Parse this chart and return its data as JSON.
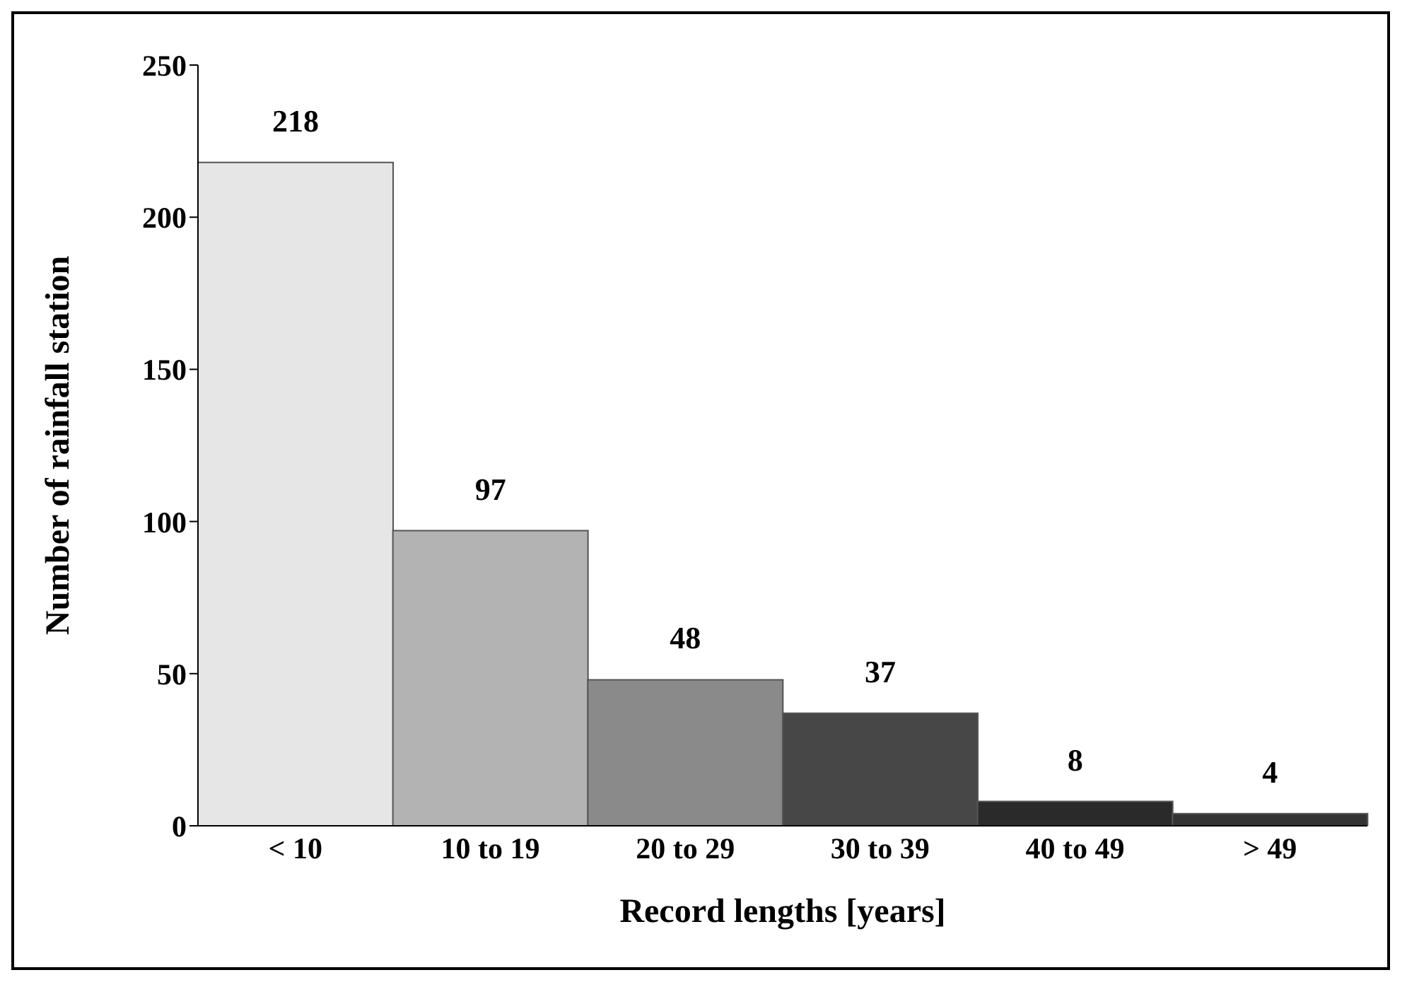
{
  "chart_data": {
    "type": "bar",
    "xlabel": "Record lengths [years]",
    "ylabel": "Number of rainfall station",
    "categories": [
      "< 10",
      "10 to 19",
      "20 to 29",
      "30 to 39",
      "40 to 49",
      "> 49"
    ],
    "values": [
      218,
      97,
      48,
      37,
      8,
      4
    ],
    "colors": [
      "#e6e6e6",
      "#b3b3b3",
      "#8a8a8a",
      "#474747",
      "#2a2a2a",
      "#333333"
    ],
    "ylim": [
      0,
      250
    ],
    "yticks": [
      0,
      50,
      100,
      150,
      200,
      250
    ],
    "grid": false,
    "data_labels": true
  }
}
